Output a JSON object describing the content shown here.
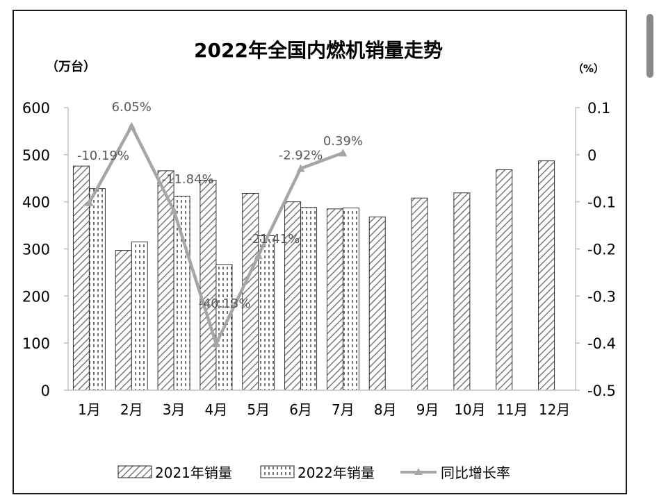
{
  "chart_data": {
    "type": "bar",
    "title": "2022年全国内燃机销量走势",
    "left_unit": "（万台）",
    "right_unit": "（%）",
    "categories": [
      "1月",
      "2月",
      "3月",
      "4月",
      "5月",
      "6月",
      "7月",
      "8月",
      "9月",
      "10月",
      "11月",
      "12月"
    ],
    "ylim": [
      0,
      600
    ],
    "y_ticks": [
      "0",
      "100",
      "200",
      "300",
      "400",
      "500",
      "600"
    ],
    "y2lim": [
      -0.5,
      0.1
    ],
    "y2_ticks": [
      "-0.5",
      "-0.4",
      "-0.3",
      "-0.2",
      "-0.1",
      "0",
      "0.1"
    ],
    "series": [
      {
        "name": "2021年销量",
        "kind": "bar",
        "pattern": "diagonal",
        "values": [
          476,
          297,
          466,
          446,
          418,
          400,
          385,
          368,
          408,
          419,
          468,
          487
        ]
      },
      {
        "name": "2022年销量",
        "kind": "bar",
        "pattern": "dotted",
        "values": [
          428,
          315,
          412,
          267,
          328,
          388,
          387,
          null,
          null,
          null,
          null,
          null
        ]
      },
      {
        "name": "同比增长率",
        "kind": "line",
        "axis": "right",
        "color": "#a6a6a6",
        "values": [
          -0.1019,
          0.0605,
          -0.1184,
          -0.4013,
          -0.2141,
          -0.0292,
          0.0039,
          null,
          null,
          null,
          null,
          null
        ],
        "labels": [
          "-10.19%",
          "6.05%",
          "-11.84%",
          "-40.13%",
          "-21.41%",
          "-2.92%",
          "0.39%",
          "",
          "",
          "",
          "",
          ""
        ]
      }
    ],
    "legend": "bottom",
    "grid": false
  }
}
